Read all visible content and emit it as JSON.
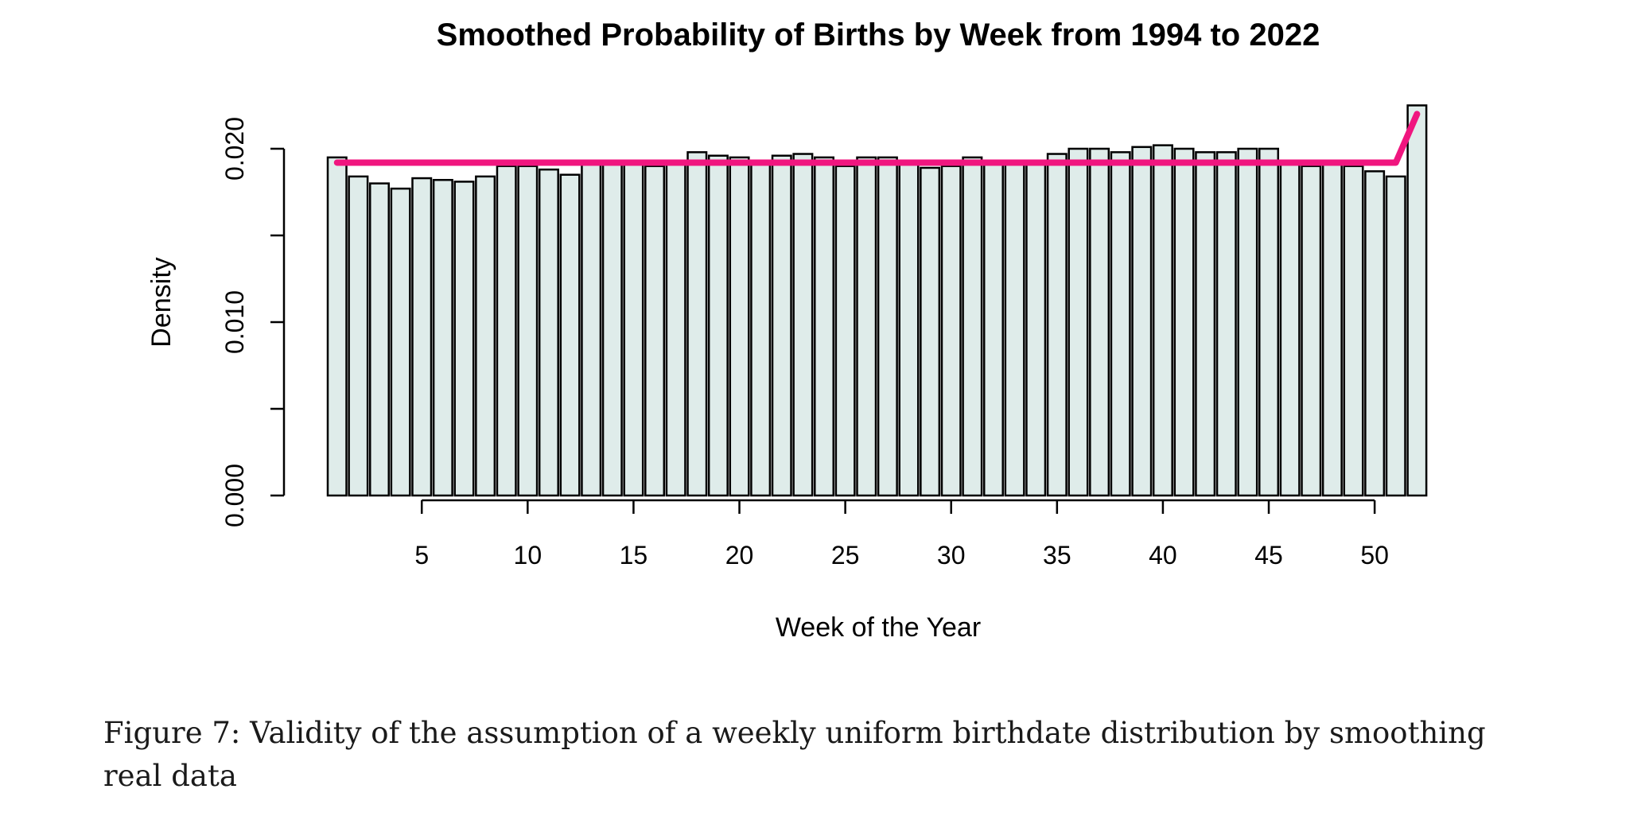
{
  "chart_data": {
    "type": "bar",
    "title": "Smoothed Probability of Births by Week from 1994 to 2022",
    "xlabel": "Week of the Year",
    "ylabel": "Density",
    "x_ticks": [
      5,
      10,
      15,
      20,
      25,
      30,
      35,
      40,
      45,
      50
    ],
    "y_ticks": [
      "0.000",
      "0.010",
      "0.020"
    ],
    "ylim": [
      0,
      0.0225
    ],
    "categories": [
      1,
      2,
      3,
      4,
      5,
      6,
      7,
      8,
      9,
      10,
      11,
      12,
      13,
      14,
      15,
      16,
      17,
      18,
      19,
      20,
      21,
      22,
      23,
      24,
      25,
      26,
      27,
      28,
      29,
      30,
      31,
      32,
      33,
      34,
      35,
      36,
      37,
      38,
      39,
      40,
      41,
      42,
      43,
      44,
      45,
      46,
      47,
      48,
      49,
      50,
      51,
      52
    ],
    "series": [
      {
        "values": [
          0.0195,
          0.0184,
          0.018,
          0.0177,
          0.0183,
          0.0182,
          0.0181,
          0.0184,
          0.019,
          0.019,
          0.0188,
          0.0185,
          0.0192,
          0.0192,
          0.0192,
          0.019,
          0.0192,
          0.0198,
          0.0196,
          0.0195,
          0.0192,
          0.0196,
          0.0197,
          0.0195,
          0.019,
          0.0195,
          0.0195,
          0.0192,
          0.0189,
          0.019,
          0.0195,
          0.0192,
          0.0192,
          0.0192,
          0.0197,
          0.02,
          0.02,
          0.0198,
          0.0201,
          0.0202,
          0.02,
          0.0198,
          0.0198,
          0.02,
          0.02,
          0.0192,
          0.019,
          0.0192,
          0.019,
          0.0187,
          0.0184,
          0.0225
        ],
        "color": "#dfecea"
      },
      {
        "type": "line",
        "x": [
          1,
          51,
          52
        ],
        "values": [
          0.0192,
          0.0192,
          0.022
        ],
        "color": "#f0167f"
      }
    ]
  },
  "caption": "Figure 7: Validity of the assumption of a weekly uniform birthdate distribution by smoothing real data"
}
